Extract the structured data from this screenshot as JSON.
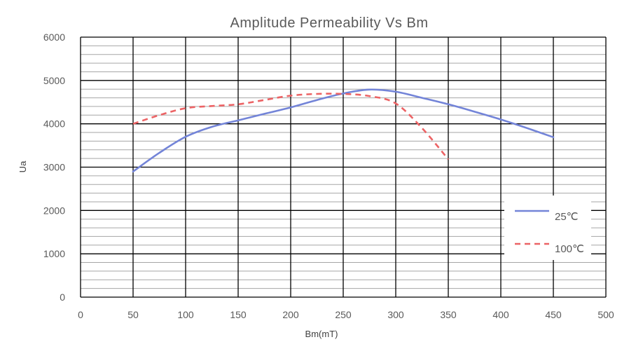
{
  "chart_data": {
    "type": "line",
    "title": "Amplitude Permeability Vs Bm",
    "xlabel": "Bm(mT)",
    "ylabel": "Ua",
    "xlim": [
      0,
      500
    ],
    "ylim": [
      0,
      6000
    ],
    "x_ticks": [
      "0",
      "50",
      "100",
      "150",
      "200",
      "250",
      "300",
      "350",
      "400",
      "450",
      "500"
    ],
    "y_ticks": [
      "0",
      "1000",
      "2000",
      "3000",
      "4000",
      "5000",
      "6000"
    ],
    "x_major_step": 50,
    "y_major_step": 1000,
    "y_minor_step": 200,
    "grid": true,
    "legend_position": "right",
    "series": [
      {
        "name": "25℃",
        "color": "#7384d8",
        "dash": "solid",
        "x": [
          50,
          75,
          100,
          125,
          150,
          175,
          200,
          225,
          250,
          275,
          300,
          325,
          350,
          375,
          400,
          425,
          450
        ],
        "y": [
          2900,
          3330,
          3700,
          3930,
          4080,
          4230,
          4380,
          4550,
          4700,
          4790,
          4740,
          4600,
          4450,
          4280,
          4100,
          3900,
          3690
        ]
      },
      {
        "name": "100℃",
        "color": "#ec6365",
        "dash": "dashed",
        "x": [
          50,
          75,
          100,
          125,
          150,
          175,
          200,
          225,
          250,
          275,
          300,
          325,
          350
        ],
        "y": [
          4000,
          4200,
          4360,
          4410,
          4450,
          4550,
          4650,
          4690,
          4690,
          4640,
          4470,
          3900,
          3180
        ]
      }
    ]
  }
}
